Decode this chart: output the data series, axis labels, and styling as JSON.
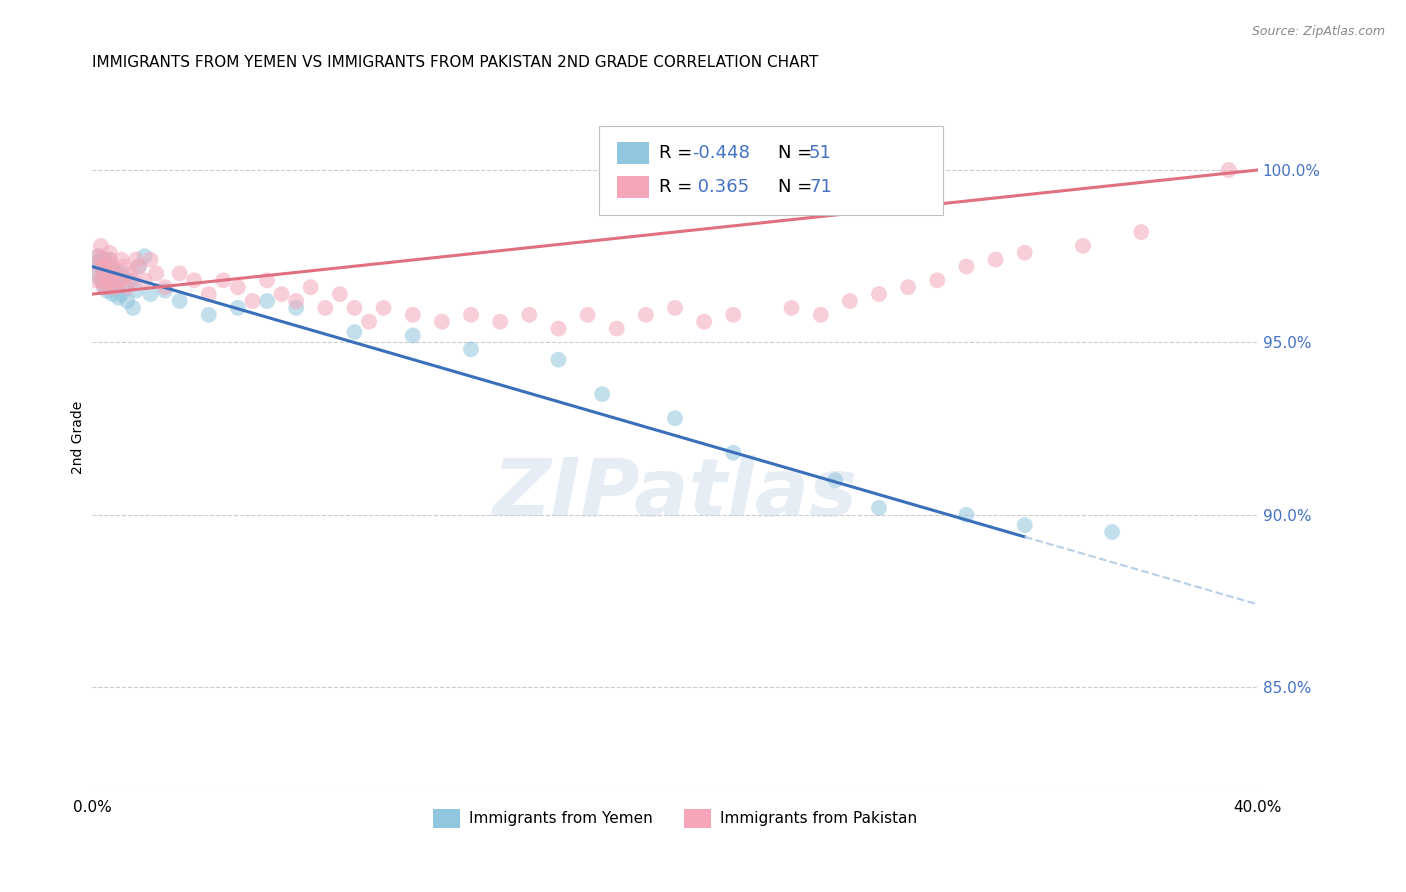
{
  "title": "IMMIGRANTS FROM YEMEN VS IMMIGRANTS FROM PAKISTAN 2ND GRADE CORRELATION CHART",
  "source": "Source: ZipAtlas.com",
  "ylabel": "2nd Grade",
  "xlim": [
    0.0,
    0.4
  ],
  "ylim": [
    0.82,
    1.025
  ],
  "y_ticks_right": [
    0.85,
    0.9,
    0.95,
    1.0
  ],
  "y_tick_labels_right": [
    "85.0%",
    "90.0%",
    "95.0%",
    "100.0%"
  ],
  "legend_label_1": "Immigrants from Yemen",
  "legend_label_2": "Immigrants from Pakistan",
  "r_yemen": "-0.448",
  "n_yemen": 51,
  "r_pakistan": "0.365",
  "n_pakistan": 71,
  "color_yemen": "#92c5de",
  "color_pakistan": "#f4a6b8",
  "color_yemen_line": "#3a6fba",
  "color_pakistan_line": "#e07080",
  "color_yemen_dash": "#b8cfe8",
  "watermark": "ZIPatlas",
  "yemen_x": [
    0.001,
    0.002,
    0.002,
    0.003,
    0.003,
    0.003,
    0.004,
    0.004,
    0.004,
    0.004,
    0.005,
    0.005,
    0.005,
    0.006,
    0.006,
    0.006,
    0.007,
    0.007,
    0.007,
    0.008,
    0.008,
    0.009,
    0.009,
    0.01,
    0.01,
    0.011,
    0.012,
    0.013,
    0.014,
    0.015,
    0.016,
    0.018,
    0.02,
    0.025,
    0.03,
    0.04,
    0.05,
    0.06,
    0.07,
    0.09,
    0.11,
    0.13,
    0.16,
    0.175,
    0.2,
    0.22,
    0.255,
    0.27,
    0.3,
    0.32,
    0.35
  ],
  "yemen_y": [
    0.97,
    0.973,
    0.975,
    0.972,
    0.968,
    0.974,
    0.971,
    0.968,
    0.966,
    0.974,
    0.965,
    0.968,
    0.972,
    0.966,
    0.97,
    0.974,
    0.968,
    0.964,
    0.971,
    0.966,
    0.97,
    0.963,
    0.968,
    0.964,
    0.97,
    0.966,
    0.962,
    0.968,
    0.96,
    0.965,
    0.972,
    0.975,
    0.964,
    0.965,
    0.962,
    0.958,
    0.96,
    0.962,
    0.96,
    0.953,
    0.952,
    0.948,
    0.945,
    0.935,
    0.928,
    0.918,
    0.91,
    0.902,
    0.9,
    0.897,
    0.895
  ],
  "pakistan_x": [
    0.001,
    0.002,
    0.002,
    0.003,
    0.003,
    0.003,
    0.004,
    0.004,
    0.004,
    0.005,
    0.005,
    0.005,
    0.006,
    0.006,
    0.006,
    0.007,
    0.007,
    0.008,
    0.008,
    0.009,
    0.01,
    0.01,
    0.011,
    0.012,
    0.013,
    0.014,
    0.015,
    0.016,
    0.018,
    0.02,
    0.022,
    0.025,
    0.03,
    0.035,
    0.04,
    0.045,
    0.05,
    0.055,
    0.06,
    0.065,
    0.07,
    0.075,
    0.08,
    0.085,
    0.09,
    0.095,
    0.1,
    0.11,
    0.12,
    0.13,
    0.14,
    0.15,
    0.16,
    0.17,
    0.18,
    0.19,
    0.2,
    0.21,
    0.22,
    0.24,
    0.25,
    0.26,
    0.27,
    0.28,
    0.29,
    0.3,
    0.31,
    0.32,
    0.34,
    0.36,
    0.39
  ],
  "pakistan_y": [
    0.968,
    0.972,
    0.975,
    0.968,
    0.974,
    0.978,
    0.97,
    0.966,
    0.972,
    0.97,
    0.966,
    0.972,
    0.976,
    0.968,
    0.974,
    0.966,
    0.972,
    0.97,
    0.966,
    0.968,
    0.974,
    0.968,
    0.972,
    0.966,
    0.97,
    0.968,
    0.974,
    0.972,
    0.968,
    0.974,
    0.97,
    0.966,
    0.97,
    0.968,
    0.964,
    0.968,
    0.966,
    0.962,
    0.968,
    0.964,
    0.962,
    0.966,
    0.96,
    0.964,
    0.96,
    0.956,
    0.96,
    0.958,
    0.956,
    0.958,
    0.956,
    0.958,
    0.954,
    0.958,
    0.954,
    0.958,
    0.96,
    0.956,
    0.958,
    0.96,
    0.958,
    0.962,
    0.964,
    0.966,
    0.968,
    0.972,
    0.974,
    0.976,
    0.978,
    0.982,
    1.0
  ],
  "trend_yemen_x0": 0.0,
  "trend_yemen_x1": 0.32,
  "trend_yemen_dash_x1": 0.4,
  "trend_yemen_y_at_0": 0.972,
  "trend_yemen_slope": -0.245,
  "trend_pakistan_x0": 0.0,
  "trend_pakistan_x1": 0.4,
  "trend_pakistan_y_at_0": 0.964,
  "trend_pakistan_slope": 0.09
}
